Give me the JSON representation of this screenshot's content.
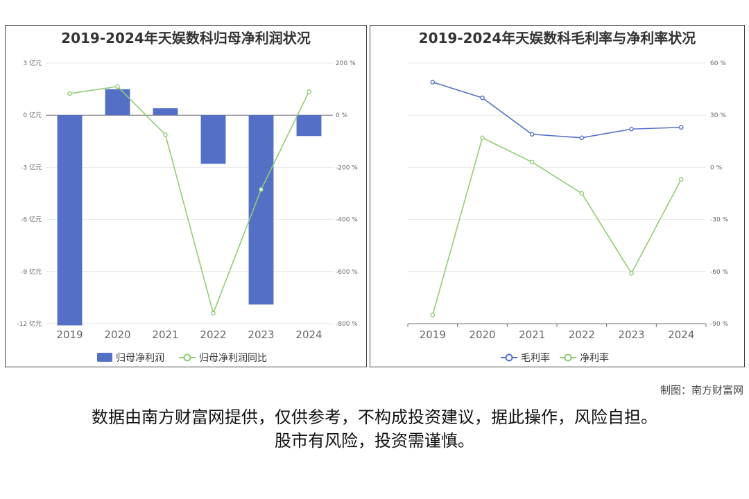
{
  "credit": "制图：南方财富网",
  "disclaimer": [
    "数据由南方财富网提供，仅供参考，不构成投资建议，据此操作，风险自担。",
    "股市有风险，投资需谨慎。"
  ],
  "colors": {
    "bar": "#5470c6",
    "green": "#91cc75",
    "blue": "#5470c6"
  },
  "chart_data": [
    {
      "type": "bar",
      "title": "2019-2024年天娱数科归母净利润状况",
      "categories": [
        "2019",
        "2020",
        "2021",
        "2022",
        "2023",
        "2024"
      ],
      "left_axis": {
        "ticks": [
          "3 亿元",
          "0 亿元",
          "-3 亿元",
          "-6 亿元",
          "-9 亿元",
          "-12 亿元"
        ],
        "range": [
          -12,
          3
        ]
      },
      "right_axis": {
        "ticks": [
          "200 %",
          "0 %",
          "-200 %",
          "-400 %",
          "-600 %",
          "-800 %"
        ],
        "range": [
          -800,
          200
        ]
      },
      "series": [
        {
          "name": "归母净利润",
          "type": "bar",
          "axis": "left",
          "values": [
            -12.1,
            1.5,
            0.4,
            -2.8,
            -10.9,
            -1.2
          ]
        },
        {
          "name": "归母净利润同比",
          "type": "line",
          "axis": "right",
          "values": [
            83,
            110,
            -75,
            -760,
            -285,
            90
          ]
        }
      ],
      "legend": "bottom"
    },
    {
      "type": "line",
      "title": "2019-2024年天娱数科毛利率与净利率状况",
      "categories": [
        "2019",
        "2020",
        "2021",
        "2022",
        "2023",
        "2024"
      ],
      "right_axis": {
        "ticks": [
          "60 %",
          "30 %",
          "0 %",
          "-30 %",
          "-60 %",
          "-90 %"
        ],
        "range": [
          -90,
          60
        ]
      },
      "series": [
        {
          "name": "毛利率",
          "values": [
            49,
            40,
            19,
            17,
            22,
            23
          ]
        },
        {
          "name": "净利率",
          "values": [
            -85,
            17,
            3,
            -15,
            -61,
            -7
          ]
        }
      ],
      "legend": "bottom"
    }
  ]
}
